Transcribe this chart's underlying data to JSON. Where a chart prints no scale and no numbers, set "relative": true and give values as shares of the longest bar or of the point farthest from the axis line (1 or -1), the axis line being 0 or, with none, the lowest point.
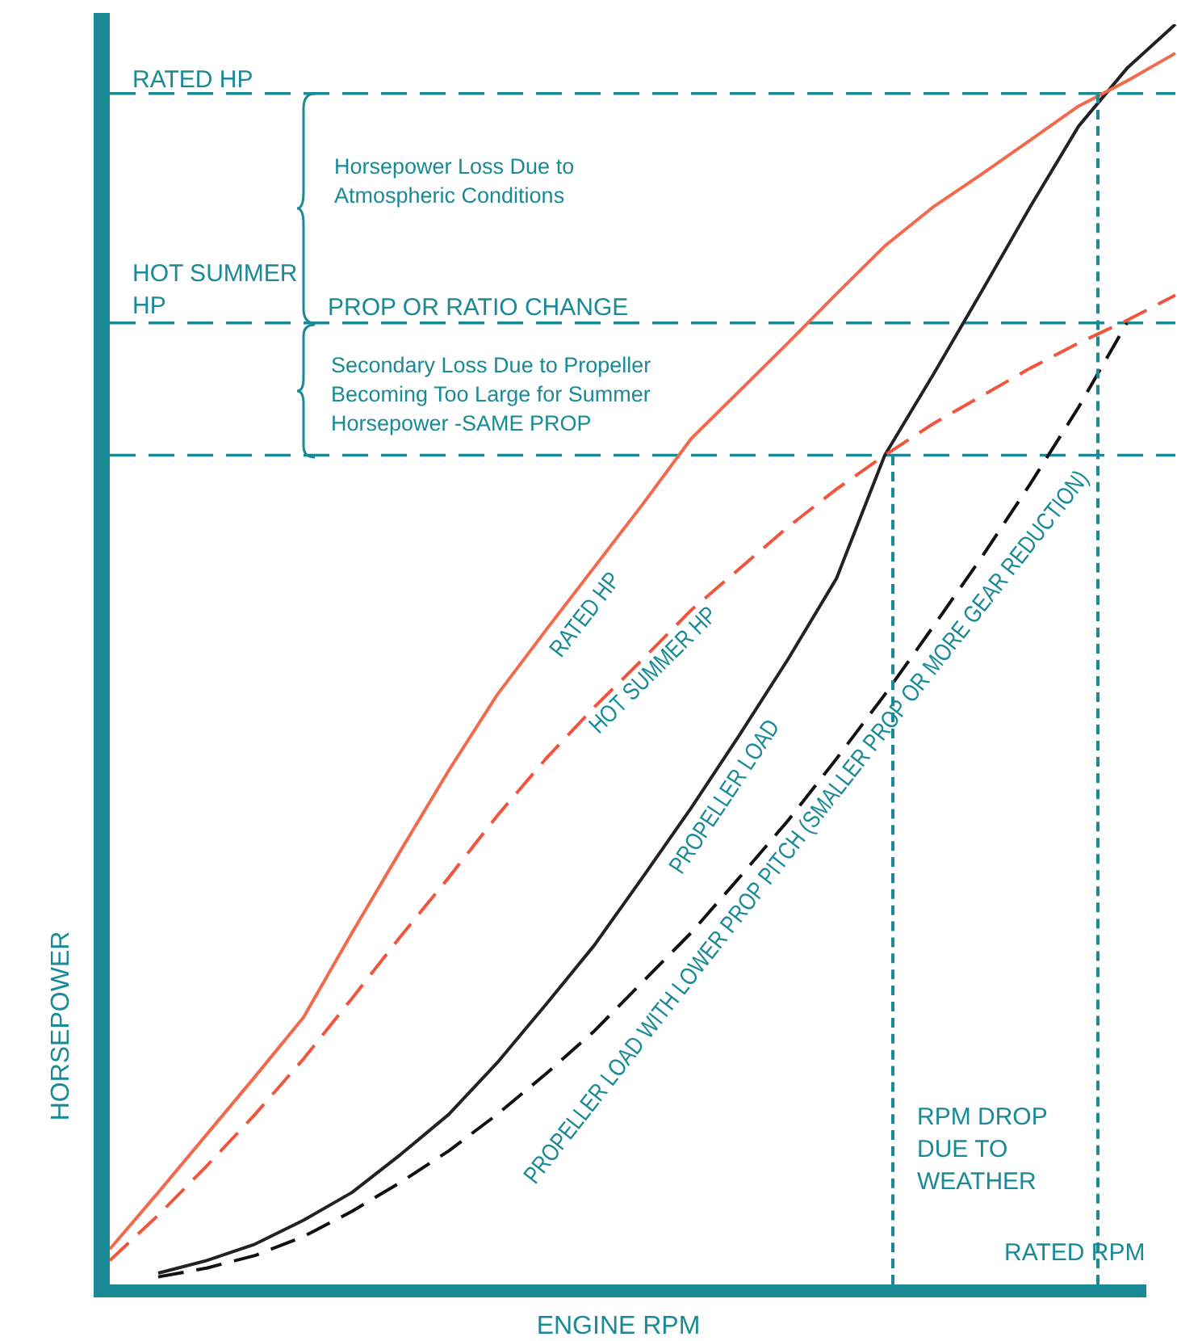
{
  "chart_data": {
    "type": "line",
    "relative": true,
    "xlabel": "ENGINE RPM",
    "ylabel": "HORSEPOWER",
    "legend": false,
    "marker": "none",
    "categories": [
      null,
      null,
      null,
      null,
      null,
      null,
      null,
      null,
      null,
      null,
      null,
      null,
      null,
      null,
      null,
      null,
      null,
      null,
      null,
      null,
      null,
      null,
      null
    ],
    "series": [
      {
        "name": "RATED HP",
        "color": "#f26a4b",
        "line_style": "solid",
        "values": [
          0.028,
          0.073,
          0.119,
          0.165,
          0.212,
          0.279,
          0.344,
          0.408,
          0.468,
          0.519,
          0.569,
          0.619,
          0.671,
          0.709,
          0.747,
          0.786,
          0.824,
          0.855,
          0.881,
          0.908,
          0.935,
          0.955,
          0.977
        ]
      },
      {
        "name": "HOT SUMMER HP",
        "color": "#f2553d",
        "line_style": "dashed",
        "values": [
          0.019,
          0.055,
          0.094,
          0.135,
          0.179,
          0.227,
          0.276,
          0.323,
          0.372,
          0.417,
          0.458,
          0.496,
          0.535,
          0.568,
          0.601,
          0.631,
          0.658,
          0.683,
          0.705,
          0.727,
          0.747,
          0.765,
          0.785
        ]
      },
      {
        "name": "PROPELLER LOAD",
        "color": "#222222",
        "line_style": "solid",
        "values": [
          null,
          0.009,
          0.019,
          0.032,
          0.051,
          0.073,
          0.103,
          0.135,
          0.176,
          0.222,
          0.269,
          0.323,
          0.378,
          0.436,
          0.496,
          0.56,
          0.658,
          0.722,
          0.788,
          0.855,
          0.919,
          0.965,
          1
        ]
      },
      {
        "name": "PROPELLER LOAD WITH LOWER PROP PITCH (SMALLER PROP OR MORE GEAR REDUCTION)",
        "color": "#111111",
        "line_style": "dashed",
        "values": [
          null,
          0.006,
          0.013,
          0.023,
          0.038,
          0.058,
          0.081,
          0.106,
          0.135,
          0.167,
          0.201,
          0.24,
          0.279,
          0.323,
          0.368,
          0.417,
          0.468,
          0.522,
          0.577,
          0.635,
          0.696,
          0.763,
          null
        ]
      }
    ],
    "ref_lines": [
      {
        "axis": "y",
        "value": 0.945,
        "label": "RATED HP",
        "color": "#1a8a96",
        "line_style": "dashed"
      },
      {
        "axis": "y",
        "value": 0.763,
        "label": "HOT SUMMER HP",
        "color": "#1a8a96",
        "line_style": "dashed"
      },
      {
        "axis": "y",
        "value": 0.658,
        "color": "#1a8a96",
        "line_style": "dashed"
      }
    ],
    "annotations": [
      "Horsepower Loss Due to Atmospheric Conditions",
      "PROP OR RATIO CHANGE",
      "Secondary Loss Due to Propeller Becoming Too Large for Summer Horsepower -SAME PROP",
      "RPM DROP DUE TO WEATHER",
      "RATED RPM"
    ]
  }
}
